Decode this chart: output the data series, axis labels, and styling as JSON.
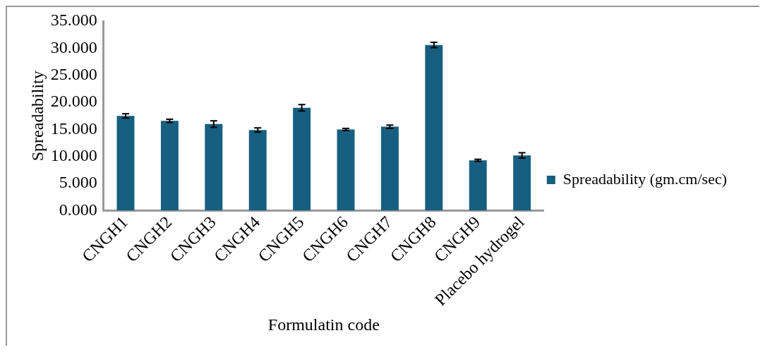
{
  "chart_data": {
    "type": "bar",
    "xlabel": "Formulatin code",
    "ylabel": "Spreadability",
    "categories": [
      "CNGH1",
      "CNGH2",
      "CNGH3",
      "CNGH4",
      "CNGH5",
      "CNGH6",
      "CNGH7",
      "CNGH8",
      "CNGH9",
      "Placebo hydrogel"
    ],
    "series": [
      {
        "name": "Spreadability (gm.cm/sec)",
        "color": "#175f80",
        "values": [
          17.5,
          16.6,
          16.0,
          14.9,
          19.0,
          15.0,
          15.5,
          30.6,
          9.3,
          10.2
        ],
        "errors": [
          0.4,
          0.3,
          0.6,
          0.4,
          0.6,
          0.2,
          0.3,
          0.5,
          0.2,
          0.5
        ]
      }
    ],
    "ylim": [
      0,
      35
    ],
    "yticks": [
      {
        "value": 0,
        "label": "0.000"
      },
      {
        "value": 5,
        "label": "5.000"
      },
      {
        "value": 10,
        "label": "10.000"
      },
      {
        "value": 15,
        "label": "15.000"
      },
      {
        "value": 20,
        "label": "20.000"
      },
      {
        "value": 25,
        "label": "25.000"
      },
      {
        "value": 30,
        "label": "30.000"
      },
      {
        "value": 35,
        "label": "35.000"
      }
    ],
    "grid": false,
    "legend": "right"
  }
}
